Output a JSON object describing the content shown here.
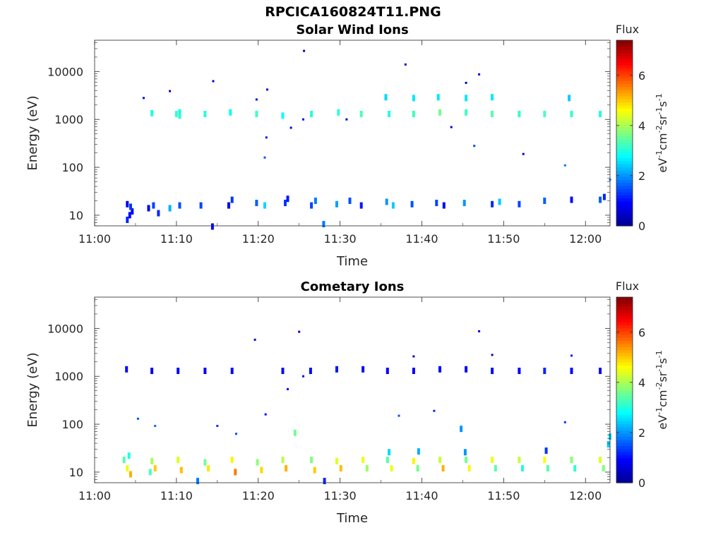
{
  "figure_title": "RPCICA160824T11.PNG",
  "colormap": [
    "#00008f",
    "#0000ff",
    "#0080ff",
    "#00ffff",
    "#80ff80",
    "#ffff00",
    "#ff8000",
    "#ff0000",
    "#800000"
  ],
  "chart_data": [
    {
      "type": "heatmap",
      "title": "Solar Wind Ions",
      "xlabel": "Time",
      "ylabel": "Energy (eV)",
      "xlim": [
        "11:00",
        "12:03"
      ],
      "xticks": [
        "11:00",
        "11:10",
        "11:20",
        "11:30",
        "11:40",
        "11:50",
        "12:00"
      ],
      "ylim": [
        6,
        45000
      ],
      "yscale": "log",
      "yticks": [
        {
          "value": 10,
          "label": "10"
        },
        {
          "value": 100,
          "label": "100"
        },
        {
          "value": 1000,
          "label": "1000"
        },
        {
          "value": 10000,
          "label": "10000"
        }
      ],
      "colorbar": {
        "label": "Flux",
        "unit_label": "eV-1cm-2sr-1s-1",
        "range": [
          0,
          7.4
        ],
        "ticks": [
          0,
          2,
          4,
          6
        ]
      },
      "points": [
        [
          10.4,
          1400,
          2.8
        ],
        [
          10.4,
          1200,
          3.0
        ],
        [
          13.5,
          1300,
          3.0
        ],
        [
          16.6,
          1400,
          2.8
        ],
        [
          19.8,
          1300,
          3.2
        ],
        [
          23.0,
          1200,
          2.8
        ],
        [
          26.5,
          1300,
          3.0
        ],
        [
          29.8,
          1400,
          3.1
        ],
        [
          32.6,
          1300,
          3.3
        ],
        [
          36.0,
          1300,
          3.0
        ],
        [
          39.0,
          1300,
          3.2
        ],
        [
          42.2,
          1400,
          3.6
        ],
        [
          45.4,
          1400,
          3.2
        ],
        [
          48.6,
          1300,
          3.4
        ],
        [
          51.9,
          1300,
          3.1
        ],
        [
          55.0,
          1300,
          3.3
        ],
        [
          58.3,
          1300,
          3.1
        ],
        [
          61.8,
          1300,
          3.0
        ],
        [
          7.0,
          1350,
          3.0
        ],
        [
          10.0,
          1300,
          3.2
        ],
        [
          35.6,
          2900,
          2.5
        ],
        [
          39.0,
          2800,
          2.6
        ],
        [
          42.0,
          2900,
          2.6
        ],
        [
          45.4,
          2800,
          2.6
        ],
        [
          48.6,
          2900,
          2.6
        ],
        [
          58.0,
          2800,
          2.4
        ],
        [
          6.0,
          2800,
          1.0
        ],
        [
          9.2,
          3900,
          0.5
        ],
        [
          14.5,
          6300,
          0.6
        ],
        [
          19.8,
          2600,
          0.8
        ],
        [
          21.1,
          4200,
          0.6
        ],
        [
          25.6,
          27000,
          0.5
        ],
        [
          38.0,
          14000,
          0.6
        ],
        [
          45.4,
          5800,
          0.6
        ],
        [
          47.0,
          8700,
          0.7
        ],
        [
          21.0,
          420,
          1.0
        ],
        [
          20.8,
          160,
          1.5
        ],
        [
          24.0,
          670,
          0.8
        ],
        [
          25.5,
          1000,
          0.7
        ],
        [
          30.8,
          1000,
          0.6
        ],
        [
          43.6,
          690,
          0.5
        ],
        [
          46.4,
          280,
          1.4
        ],
        [
          52.4,
          190,
          0.7
        ],
        [
          57.5,
          110,
          1.8
        ],
        [
          63.0,
          55,
          1.8
        ],
        [
          4.0,
          8,
          1.2
        ],
        [
          4.3,
          10,
          1.0
        ],
        [
          4.6,
          12,
          0.9
        ],
        [
          4.4,
          15,
          1.3
        ],
        [
          4.0,
          17,
          0.8
        ],
        [
          6.6,
          14,
          0.8
        ],
        [
          7.2,
          16,
          1.4
        ],
        [
          7.8,
          11,
          1.2
        ],
        [
          9.2,
          14,
          2.2
        ],
        [
          10.4,
          16,
          1.5
        ],
        [
          13.0,
          16,
          1.4
        ],
        [
          16.4,
          16,
          0.9
        ],
        [
          16.8,
          21,
          1.3
        ],
        [
          19.8,
          18,
          1.6
        ],
        [
          20.8,
          16,
          2.5
        ],
        [
          23.3,
          18,
          1.3
        ],
        [
          23.6,
          22,
          1.1
        ],
        [
          26.5,
          16,
          1.4
        ],
        [
          27.0,
          20,
          1.8
        ],
        [
          29.6,
          17,
          2.1
        ],
        [
          31.2,
          20,
          1.5
        ],
        [
          32.6,
          16,
          1.1
        ],
        [
          35.7,
          19,
          2.0
        ],
        [
          36.5,
          16,
          2.4
        ],
        [
          38.8,
          17,
          1.5
        ],
        [
          41.8,
          18,
          1.4
        ],
        [
          42.7,
          16,
          1.0
        ],
        [
          45.2,
          18,
          2.0
        ],
        [
          48.6,
          17,
          1.2
        ],
        [
          49.5,
          19,
          2.4
        ],
        [
          51.9,
          17,
          1.4
        ],
        [
          55.0,
          20,
          1.6
        ],
        [
          58.3,
          21,
          1.0
        ],
        [
          61.8,
          21,
          1.6
        ],
        [
          62.3,
          24,
          1.2
        ],
        [
          14.4,
          5.8,
          0.9
        ],
        [
          28.0,
          6.5,
          1.8
        ]
      ]
    },
    {
      "type": "heatmap",
      "title": "Cometary Ions",
      "xlabel": "Time",
      "ylabel": "Energy (eV)",
      "xlim": [
        "11:00",
        "12:03"
      ],
      "xticks": [
        "11:00",
        "11:10",
        "11:20",
        "11:30",
        "11:40",
        "11:50",
        "12:00"
      ],
      "ylim": [
        6,
        45000
      ],
      "yscale": "log",
      "yticks": [
        {
          "value": 10,
          "label": "10"
        },
        {
          "value": 100,
          "label": "100"
        },
        {
          "value": 1000,
          "label": "1000"
        },
        {
          "value": 10000,
          "label": "10000"
        }
      ],
      "colorbar": {
        "label": "Flux",
        "unit_label": "eV-1cm-2sr-1s-1",
        "range": [
          0,
          7.4
        ],
        "ticks": [
          0,
          2,
          4,
          6
        ]
      },
      "points": [
        [
          3.9,
          1400,
          1.0
        ],
        [
          7.0,
          1300,
          0.8
        ],
        [
          10.2,
          1300,
          1.0
        ],
        [
          13.5,
          1300,
          0.9
        ],
        [
          16.8,
          1300,
          1.0
        ],
        [
          23.0,
          1300,
          1.0
        ],
        [
          26.4,
          1300,
          1.0
        ],
        [
          29.6,
          1400,
          1.1
        ],
        [
          32.8,
          1400,
          1.0
        ],
        [
          35.8,
          1300,
          0.9
        ],
        [
          39.0,
          1300,
          0.9
        ],
        [
          42.2,
          1400,
          1.0
        ],
        [
          45.4,
          1400,
          0.9
        ],
        [
          48.6,
          1300,
          1.0
        ],
        [
          51.9,
          1300,
          0.9
        ],
        [
          55.0,
          1300,
          1.2
        ],
        [
          58.3,
          1300,
          1.0
        ],
        [
          61.8,
          1300,
          1.0
        ],
        [
          39.0,
          2600,
          0.6
        ],
        [
          48.6,
          2800,
          0.6
        ],
        [
          58.3,
          2700,
          1.1
        ],
        [
          19.6,
          5800,
          0.6
        ],
        [
          25.0,
          8500,
          0.5
        ],
        [
          47.0,
          8700,
          0.6
        ],
        [
          23.6,
          540,
          0.9
        ],
        [
          25.5,
          1000,
          0.8
        ],
        [
          20.9,
          160,
          1.0
        ],
        [
          37.2,
          150,
          1.5
        ],
        [
          41.5,
          190,
          1.2
        ],
        [
          44.8,
          80,
          2.0
        ],
        [
          5.3,
          130,
          1.5
        ],
        [
          7.4,
          92,
          1.7
        ],
        [
          15.0,
          92,
          1.3
        ],
        [
          17.3,
          63,
          1.5
        ],
        [
          24.5,
          66,
          3.6
        ],
        [
          57.5,
          110,
          1.3
        ],
        [
          63.0,
          55,
          2.5
        ],
        [
          62.8,
          38,
          2.4
        ],
        [
          3.6,
          18,
          3.4
        ],
        [
          4.0,
          12,
          4.5
        ],
        [
          4.4,
          9,
          5.2
        ],
        [
          4.2,
          22,
          3.0
        ],
        [
          7.0,
          17,
          4.0
        ],
        [
          7.4,
          12,
          5.0
        ],
        [
          6.8,
          10,
          3.3
        ],
        [
          10.2,
          18,
          4.4
        ],
        [
          10.6,
          11,
          5.1
        ],
        [
          13.5,
          16,
          3.6
        ],
        [
          13.9,
          12,
          4.8
        ],
        [
          16.8,
          18,
          4.7
        ],
        [
          17.2,
          10,
          5.6
        ],
        [
          19.9,
          16,
          3.8
        ],
        [
          20.4,
          11,
          4.9
        ],
        [
          23.0,
          18,
          4.1
        ],
        [
          23.4,
          12,
          5.2
        ],
        [
          26.5,
          18,
          3.7
        ],
        [
          26.9,
          11,
          5.0
        ],
        [
          29.6,
          17,
          4.4
        ],
        [
          30.1,
          12,
          5.1
        ],
        [
          32.8,
          18,
          4.5
        ],
        [
          33.3,
          12,
          3.9
        ],
        [
          35.8,
          18,
          3.4
        ],
        [
          36.3,
          12,
          4.5
        ],
        [
          39.0,
          17,
          4.7
        ],
        [
          39.5,
          12,
          3.6
        ],
        [
          42.2,
          18,
          4.2
        ],
        [
          42.6,
          12,
          5.2
        ],
        [
          45.4,
          18,
          3.6
        ],
        [
          45.8,
          12,
          4.7
        ],
        [
          48.6,
          18,
          4.5
        ],
        [
          49.0,
          12,
          3.4
        ],
        [
          51.9,
          18,
          4.2
        ],
        [
          52.3,
          12,
          3.0
        ],
        [
          55.0,
          18,
          4.6
        ],
        [
          55.4,
          12,
          3.4
        ],
        [
          58.3,
          18,
          3.8
        ],
        [
          58.7,
          12,
          3.1
        ],
        [
          61.8,
          18,
          4.4
        ],
        [
          62.2,
          12,
          3.7
        ],
        [
          36.0,
          26,
          2.5
        ],
        [
          39.6,
          27,
          2.2
        ],
        [
          45.3,
          26,
          2.0
        ],
        [
          55.2,
          28,
          1.3
        ],
        [
          28.1,
          6.5,
          1.2
        ],
        [
          12.6,
          6.5,
          1.8
        ]
      ]
    }
  ]
}
